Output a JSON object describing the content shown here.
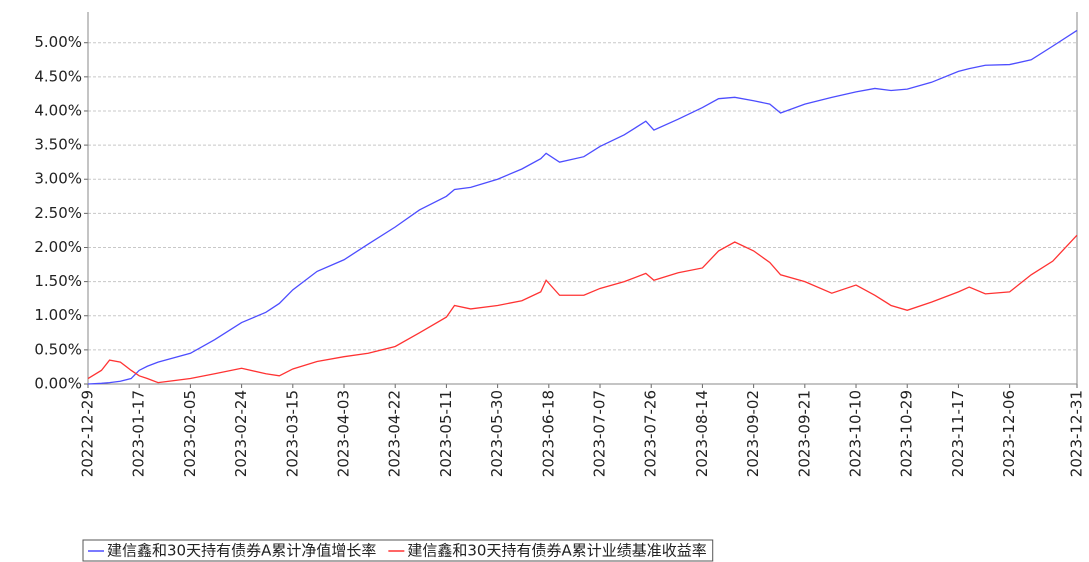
{
  "chart_data": {
    "type": "line",
    "x": [
      "2022-12-29",
      "2023-01-03",
      "2023-01-06",
      "2023-01-10",
      "2023-01-14",
      "2023-01-17",
      "2023-01-20",
      "2023-01-24",
      "2023-02-05",
      "2023-02-14",
      "2023-02-24",
      "2023-03-05",
      "2023-03-10",
      "2023-03-15",
      "2023-03-24",
      "2023-04-03",
      "2023-04-12",
      "2023-04-22",
      "2023-05-01",
      "2023-05-11",
      "2023-05-14",
      "2023-05-20",
      "2023-05-30",
      "2023-06-08",
      "2023-06-15",
      "2023-06-17",
      "2023-06-22",
      "2023-07-01",
      "2023-07-07",
      "2023-07-16",
      "2023-07-24",
      "2023-07-27",
      "2023-08-05",
      "2023-08-14",
      "2023-08-20",
      "2023-08-26",
      "2023-09-02",
      "2023-09-08",
      "2023-09-12",
      "2023-09-21",
      "2023-10-01",
      "2023-10-10",
      "2023-10-17",
      "2023-10-23",
      "2023-10-29",
      "2023-11-07",
      "2023-11-17",
      "2023-11-21",
      "2023-11-27",
      "2023-12-06",
      "2023-12-14",
      "2023-12-22",
      "2023-12-31"
    ],
    "series": [
      {
        "name": "建信鑫和30天持有债券A累计净值增长率",
        "color": "#4d4dff",
        "values": [
          0,
          0.01,
          0.02,
          0.04,
          0.08,
          0.2,
          0.26,
          0.32,
          0.45,
          0.65,
          0.9,
          1.05,
          1.18,
          1.38,
          1.65,
          1.82,
          2.05,
          2.3,
          2.55,
          2.75,
          2.85,
          2.88,
          3.0,
          3.15,
          3.3,
          3.38,
          3.25,
          3.33,
          3.48,
          3.65,
          3.85,
          3.72,
          3.88,
          4.05,
          4.18,
          4.2,
          4.15,
          4.1,
          3.97,
          4.1,
          4.2,
          4.28,
          4.33,
          4.3,
          4.32,
          4.42,
          4.58,
          4.62,
          4.67,
          4.68,
          4.75,
          4.95,
          5.18
        ]
      },
      {
        "name": "建信鑫和30天持有债券A累计业绩基准收益率",
        "color": "#ff3333",
        "values": [
          0.08,
          0.2,
          0.35,
          0.32,
          0.2,
          0.12,
          0.08,
          0.02,
          0.08,
          0.15,
          0.23,
          0.15,
          0.12,
          0.22,
          0.33,
          0.4,
          0.45,
          0.55,
          0.75,
          0.98,
          1.15,
          1.1,
          1.15,
          1.22,
          1.35,
          1.52,
          1.3,
          1.3,
          1.4,
          1.5,
          1.62,
          1.52,
          1.63,
          1.7,
          1.95,
          2.08,
          1.95,
          1.78,
          1.6,
          1.5,
          1.33,
          1.45,
          1.3,
          1.15,
          1.08,
          1.2,
          1.35,
          1.42,
          1.32,
          1.35,
          1.6,
          1.8,
          2.18
        ]
      }
    ],
    "xlim": [
      "2022-12-29",
      "2023-12-31"
    ],
    "xticks": [
      "2022-12-29",
      "2023-01-17",
      "2023-02-05",
      "2023-02-24",
      "2023-03-15",
      "2023-04-03",
      "2023-04-22",
      "2023-05-11",
      "2023-05-30",
      "2023-06-18",
      "2023-07-07",
      "2023-07-26",
      "2023-08-14",
      "2023-09-02",
      "2023-09-21",
      "2023-10-10",
      "2023-10-29",
      "2023-11-17",
      "2023-12-06",
      "2023-12-31"
    ],
    "ylim": [
      0,
      5.45
    ],
    "yticks": [
      {
        "value": 0,
        "label": "0.00%"
      },
      {
        "value": 0.5,
        "label": "0.50%"
      },
      {
        "value": 1,
        "label": "1.00%"
      },
      {
        "value": 1.5,
        "label": "1.50%"
      },
      {
        "value": 2,
        "label": "2.00%"
      },
      {
        "value": 2.5,
        "label": "2.50%"
      },
      {
        "value": 3,
        "label": "3.00%"
      },
      {
        "value": 3.5,
        "label": "3.50%"
      },
      {
        "value": 4,
        "label": "4.00%"
      },
      {
        "value": 4.5,
        "label": "4.50%"
      },
      {
        "value": 5,
        "label": "5.00%"
      }
    ],
    "grid": true,
    "legend": "bottom"
  }
}
